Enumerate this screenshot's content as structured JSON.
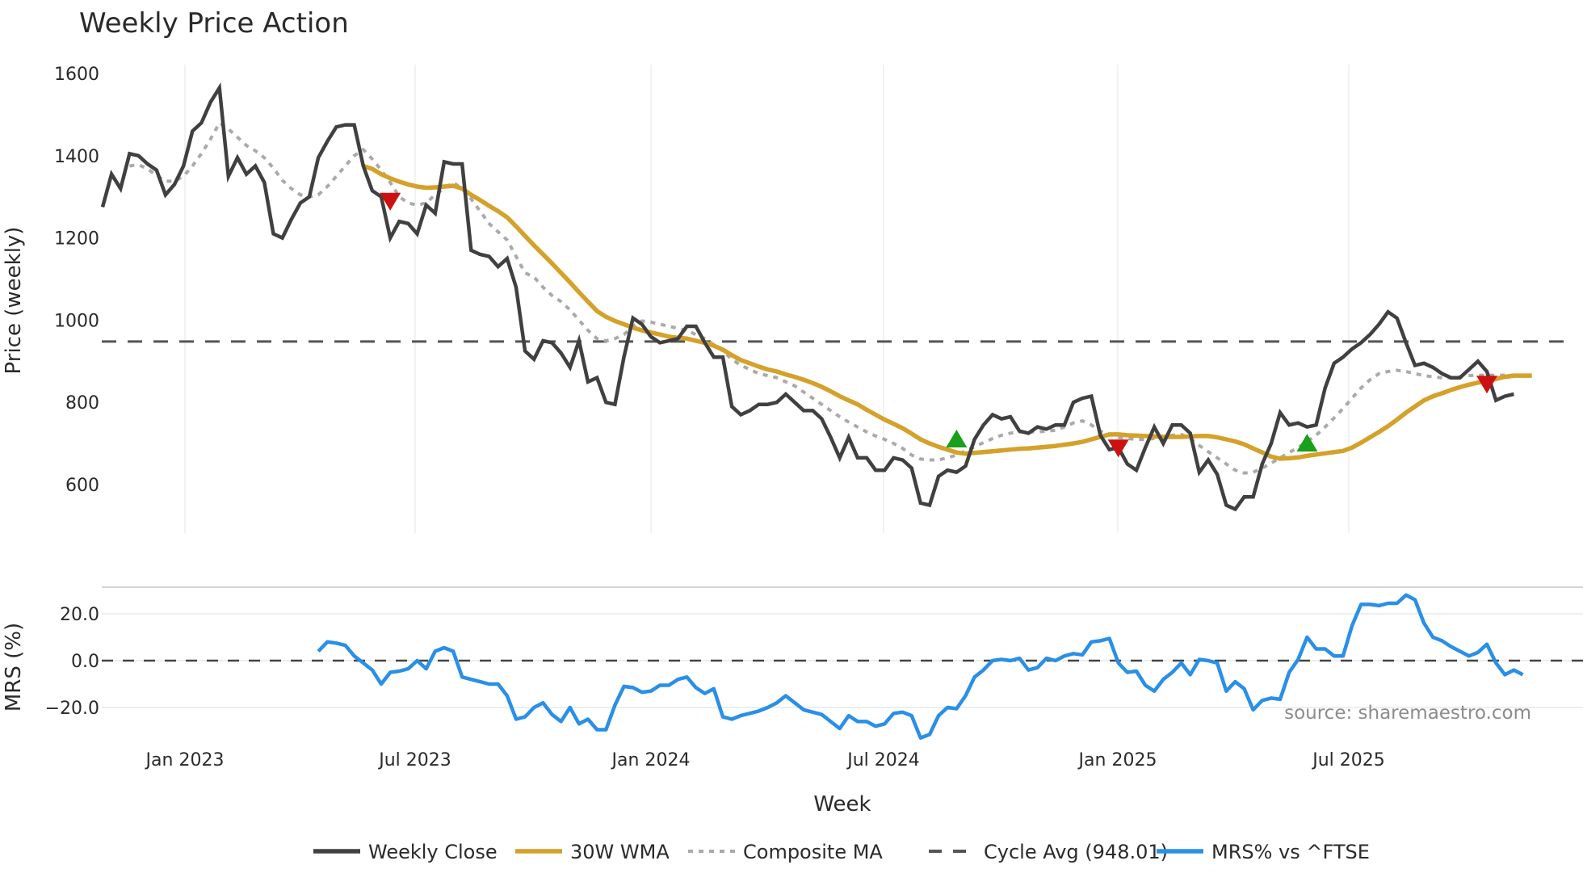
{
  "title": "Weekly Price Action",
  "source_note": "source: sharemaestro.com",
  "axes": {
    "price_ylabel": "Price (weekly)",
    "mrs_ylabel": "MRS (%)",
    "xlabel": "Week",
    "price_yticks": [
      1600,
      1400,
      1200,
      1000,
      800,
      600
    ],
    "mrs_yticks": [
      "20.0",
      "0.0",
      "−20.0"
    ],
    "xticks": [
      "Jan 2023",
      "Jul 2023",
      "Jan 2024",
      "Jul 2024",
      "Jan 2025",
      "Jul 2025"
    ]
  },
  "legend": [
    {
      "label": "Weekly Close",
      "color": "#404040",
      "style": "solid"
    },
    {
      "label": "30W WMA",
      "color": "#D4A12A",
      "style": "solid"
    },
    {
      "label": "Composite MA",
      "color": "#AAAAAA",
      "style": "dotted"
    },
    {
      "label": "Cycle Avg (948.01)",
      "color": "#555555",
      "style": "dashed"
    },
    {
      "label": "MRS% vs ^FTSE",
      "color": "#2A8FE6",
      "style": "solid"
    }
  ],
  "colors": {
    "close": "#404040",
    "wma": "#D4A12A",
    "composite": "#AAAAAA",
    "cycle": "#555555",
    "mrs": "#2A8FE6",
    "buy_marker": "#1AA01A",
    "sell_marker": "#CC1111",
    "grid": "#ECEEF2"
  },
  "chart_data": [
    {
      "type": "line",
      "title": "Weekly Price Action",
      "xlabel": "Week",
      "ylabel": "Price (weekly)",
      "ylim": [
        490,
        1620
      ],
      "x_start": "2022-11-07",
      "x_step_days": 7,
      "grid": true,
      "legend_position": "bottom",
      "cycle_avg": 948.01,
      "series": [
        {
          "name": "Weekly Close",
          "values": [
            1275,
            1355,
            1320,
            1405,
            1400,
            1380,
            1365,
            1305,
            1330,
            1375,
            1460,
            1480,
            1530,
            1565,
            1350,
            1395,
            1355,
            1375,
            1335,
            1210,
            1200,
            1245,
            1285,
            1300,
            1395,
            1435,
            1470,
            1475,
            1475,
            1375,
            1315,
            1300,
            1200,
            1240,
            1235,
            1210,
            1280,
            1260,
            1385,
            1380,
            1380,
            1170,
            1160,
            1155,
            1130,
            1150,
            1080,
            925,
            905,
            950,
            945,
            920,
            885,
            950,
            850,
            860,
            800,
            795,
            910,
            1005,
            990,
            960,
            945,
            950,
            955,
            985,
            985,
            945,
            910,
            910,
            790,
            770,
            780,
            795,
            795,
            800,
            820,
            800,
            780,
            780,
            760,
            715,
            665,
            715,
            665,
            665,
            635,
            635,
            665,
            660,
            640,
            555,
            550,
            620,
            635,
            630,
            645,
            710,
            745,
            770,
            760,
            765,
            730,
            725,
            740,
            735,
            745,
            745,
            800,
            810,
            815,
            720,
            685,
            690,
            650,
            635,
            690,
            740,
            700,
            745,
            745,
            725,
            630,
            660,
            625,
            550,
            540,
            570,
            570,
            650,
            700,
            775,
            745,
            750,
            740,
            745,
            835,
            895,
            910,
            930,
            945,
            965,
            990,
            1020,
            1005,
            945,
            890,
            895,
            885,
            870,
            860,
            860,
            880,
            900,
            875,
            805,
            815,
            820
          ]
        },
        {
          "name": "30W WMA",
          "values": [
            null,
            null,
            null,
            null,
            null,
            null,
            null,
            null,
            null,
            null,
            null,
            null,
            null,
            null,
            null,
            null,
            null,
            null,
            null,
            null,
            null,
            null,
            null,
            null,
            null,
            null,
            null,
            null,
            null,
            1375,
            1368,
            1355,
            1345,
            1337,
            1330,
            1325,
            1322,
            1323,
            1325,
            1327,
            1320,
            1305,
            1292,
            1278,
            1265,
            1250,
            1228,
            1205,
            1182,
            1160,
            1138,
            1115,
            1092,
            1068,
            1045,
            1022,
            1008,
            998,
            990,
            982,
            975,
            970,
            965,
            960,
            957,
            955,
            950,
            945,
            938,
            928,
            915,
            903,
            895,
            887,
            880,
            875,
            868,
            862,
            855,
            847,
            838,
            827,
            815,
            805,
            795,
            782,
            770,
            758,
            748,
            737,
            724,
            710,
            700,
            692,
            685,
            678,
            675,
            677,
            679,
            681,
            683,
            685,
            687,
            688,
            690,
            692,
            694,
            697,
            700,
            704,
            710,
            716,
            722,
            722,
            720,
            719,
            718,
            717,
            716,
            716,
            716,
            717,
            718,
            718,
            715,
            710,
            705,
            698,
            688,
            678,
            668,
            663,
            664,
            666,
            670,
            673,
            676,
            679,
            682,
            690,
            702,
            715,
            728,
            742,
            758,
            775,
            790,
            805,
            815,
            822,
            830,
            837,
            843,
            848,
            852,
            857,
            862,
            865,
            865,
            865
          ]
        },
        {
          "name": "Composite MA",
          "values": [
            null,
            null,
            null,
            1375,
            1378,
            1368,
            1352,
            1338,
            1338,
            1350,
            1375,
            1405,
            1440,
            1480,
            1465,
            1445,
            1425,
            1412,
            1395,
            1370,
            1340,
            1320,
            1305,
            1300,
            1305,
            1325,
            1350,
            1375,
            1400,
            1415,
            1392,
            1365,
            1335,
            1300,
            1285,
            1280,
            1285,
            1305,
            1320,
            1335,
            1320,
            1295,
            1265,
            1235,
            1215,
            1195,
            1155,
            1115,
            1105,
            1080,
            1060,
            1045,
            1025,
            1000,
            975,
            955,
            950,
            955,
            965,
            985,
            998,
            995,
            990,
            985,
            980,
            975,
            965,
            955,
            940,
            925,
            905,
            890,
            880,
            870,
            865,
            860,
            850,
            840,
            825,
            810,
            795,
            780,
            765,
            752,
            740,
            728,
            718,
            710,
            700,
            688,
            672,
            662,
            660,
            660,
            665,
            672,
            682,
            692,
            702,
            712,
            720,
            725,
            728,
            728,
            728,
            730,
            732,
            740,
            750,
            755,
            745,
            730,
            722,
            715,
            712,
            710,
            710,
            712,
            715,
            720,
            722,
            712,
            695,
            680,
            665,
            650,
            635,
            628,
            630,
            640,
            652,
            665,
            678,
            690,
            705,
            720,
            740,
            762,
            785,
            810,
            835,
            855,
            870,
            875,
            878,
            875,
            870,
            865,
            862,
            860,
            860,
            862,
            865,
            866,
            866,
            866,
            866,
            866
          ]
        }
      ],
      "markers": [
        {
          "type": "sell",
          "week_index": 32,
          "value": 1290
        },
        {
          "type": "buy",
          "week_index": 95,
          "value": 710
        },
        {
          "type": "sell",
          "week_index": 113,
          "value": 690
        },
        {
          "type": "buy",
          "week_index": 134,
          "value": 700
        },
        {
          "type": "sell",
          "week_index": 154,
          "value": 845
        }
      ]
    },
    {
      "type": "line",
      "title": "MRS% vs ^FTSE",
      "ylabel": "MRS (%)",
      "ylim": [
        -36,
        32
      ],
      "zero_line": 0,
      "x_start_week_index": 24,
      "series": [
        {
          "name": "MRS% vs ^FTSE",
          "values": [
            4,
            8,
            7.5,
            6.5,
            2,
            -1,
            -4,
            -10,
            -5,
            -4.5,
            -3.5,
            0,
            -3.5,
            4,
            5.5,
            4,
            -7,
            -8,
            -9,
            -10,
            -10,
            -15,
            -25,
            -24,
            -20,
            -18,
            -23,
            -26,
            -20,
            -27,
            -25,
            -29.5,
            -29.5,
            -19,
            -11,
            -11.5,
            -13.5,
            -13,
            -10.5,
            -10.5,
            -8,
            -7,
            -11.5,
            -14,
            -12,
            -24,
            -25,
            -23.5,
            -22.5,
            -21.5,
            -20,
            -18,
            -15,
            -18,
            -21,
            -22,
            -23,
            -26,
            -29,
            -23.5,
            -26,
            -26,
            -28,
            -27,
            -22.5,
            -22,
            -23.5,
            -33,
            -31.5,
            -23.5,
            -20,
            -20.5,
            -15,
            -7,
            -4,
            0,
            0.5,
            0,
            1,
            -4,
            -3,
            1,
            0,
            2,
            3,
            2.5,
            8,
            8.5,
            9.5,
            -1,
            -5,
            -4.5,
            -10.5,
            -13,
            -8,
            -5,
            -1,
            -6,
            0.5,
            0,
            -1,
            -13,
            -9,
            -12,
            -21,
            -17,
            -16,
            -16.5,
            -5,
            0.5,
            10,
            5,
            5,
            2,
            2,
            15,
            24,
            24,
            23.5,
            24.5,
            24.5,
            28,
            26,
            16,
            10,
            8.5,
            6,
            4,
            2,
            3.5,
            7,
            -1,
            -6,
            -4,
            -6
          ]
        }
      ]
    }
  ]
}
